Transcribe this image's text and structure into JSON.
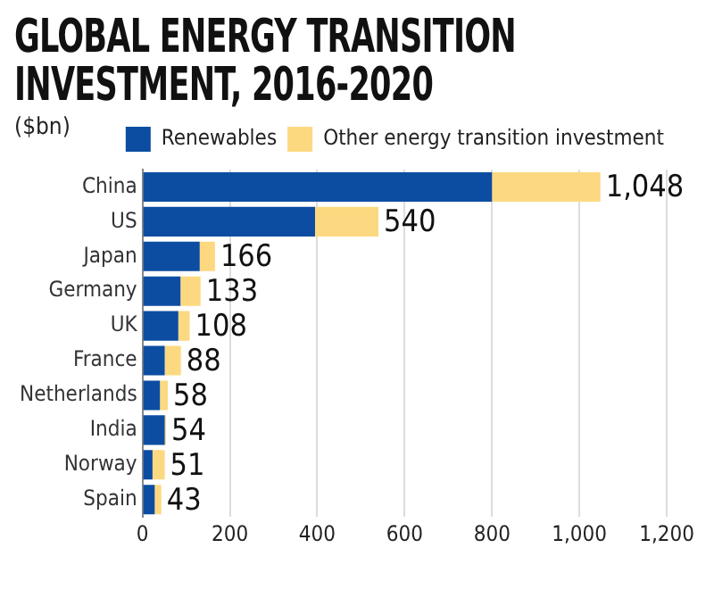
{
  "chart_data": {
    "type": "bar",
    "orientation": "horizontal",
    "stacked": true,
    "title": "GLOBAL ENERGY TRANSITION INVESTMENT, 2016-2020",
    "subtitle": "($bn)",
    "categories": [
      "China",
      "US",
      "Japan",
      "Germany",
      "UK",
      "France",
      "Netherlands",
      "India",
      "Norway",
      "Spain"
    ],
    "series": [
      {
        "name": "Renewables",
        "color": "#0c4da2",
        "values": [
          800,
          395,
          131,
          87,
          82,
          51,
          40,
          51,
          23,
          28
        ]
      },
      {
        "name": "Other energy transition investment",
        "color": "#fcd980",
        "values": [
          248,
          145,
          35,
          46,
          26,
          37,
          18,
          3,
          28,
          15
        ]
      }
    ],
    "totals": [
      "1,048",
      "540",
      "166",
      "133",
      "108",
      "88",
      "58",
      "54",
      "51",
      "43"
    ],
    "xlim": [
      0,
      1200
    ],
    "xticks": [
      0,
      200,
      400,
      {
        "value": 600,
        "label": "600"
      },
      800,
      {
        "value": 1000,
        "label": "1,000"
      },
      {
        "value": 1200,
        "label": "1,200"
      }
    ],
    "grid": "x",
    "legend": "top right"
  }
}
